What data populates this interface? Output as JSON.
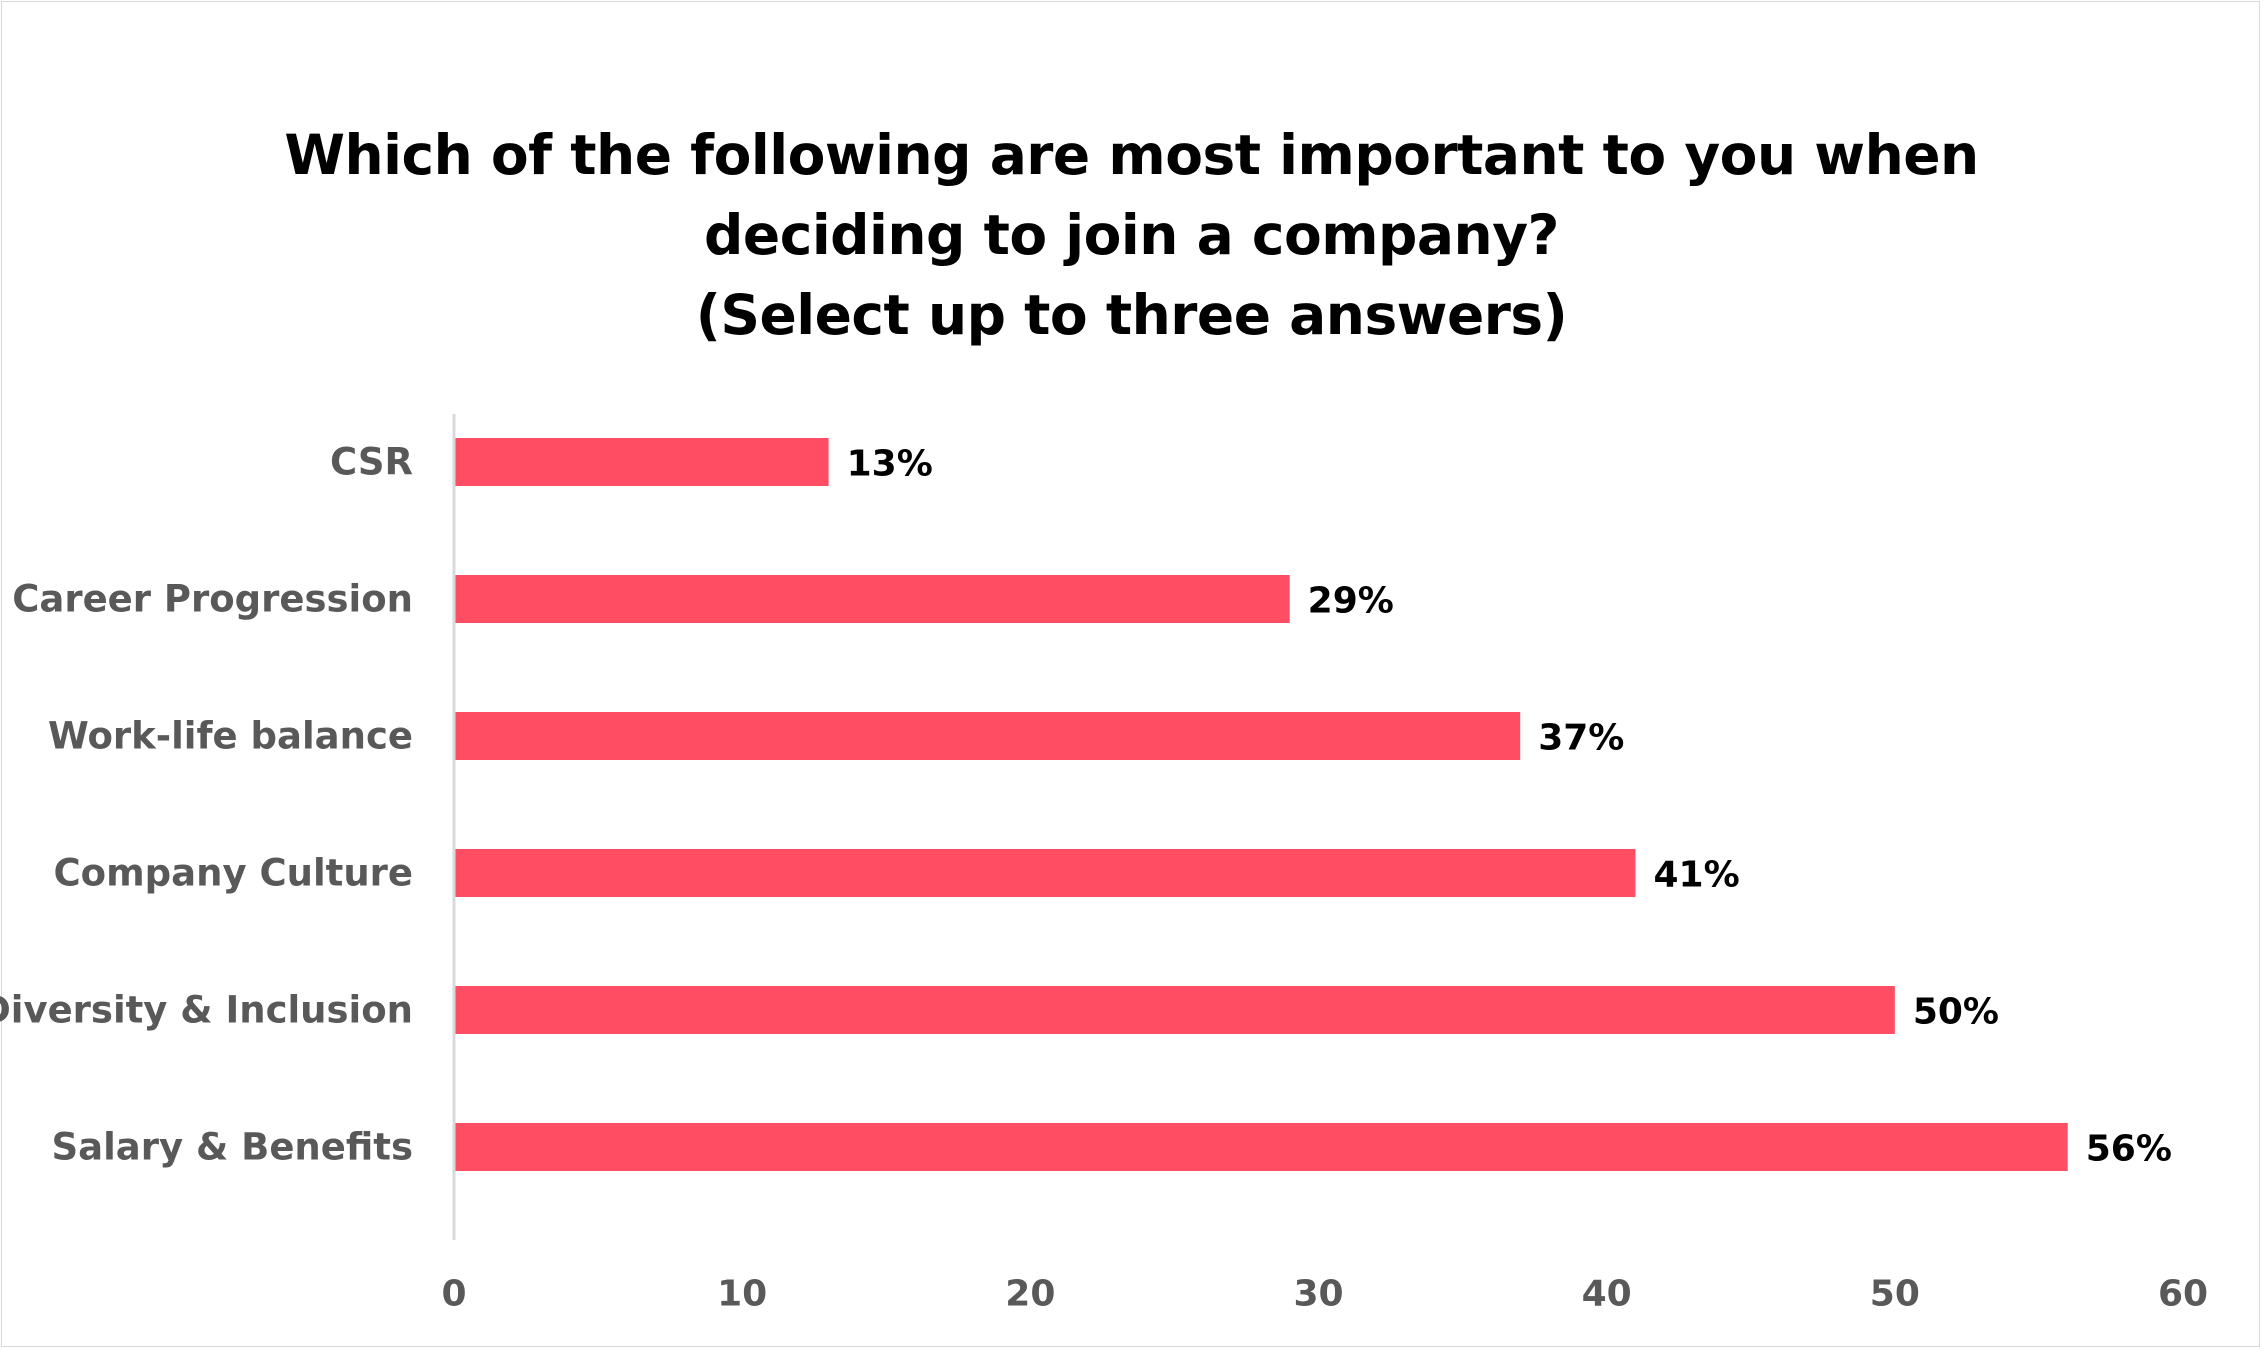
{
  "chart_data": {
    "type": "bar",
    "orientation": "horizontal",
    "title_lines": [
      "Which of the following are most important to you when",
      "deciding to join a company?",
      "(Select up to three answers)"
    ],
    "categories": [
      "CSR",
      "Career Progression",
      "Work-life balance",
      "Company Culture",
      "Diversity & Inclusion",
      "Salary & Benefits"
    ],
    "values": [
      13,
      29,
      37,
      41,
      50,
      56
    ],
    "data_labels": [
      "13%",
      "29%",
      "37%",
      "41%",
      "50%",
      "56%"
    ],
    "xlim": [
      0,
      60
    ],
    "x_ticks": [
      "0",
      "10",
      "20",
      "30",
      "40",
      "50",
      "60"
    ],
    "grid": false,
    "legend": "none",
    "bar_color": "#ff4d63"
  }
}
